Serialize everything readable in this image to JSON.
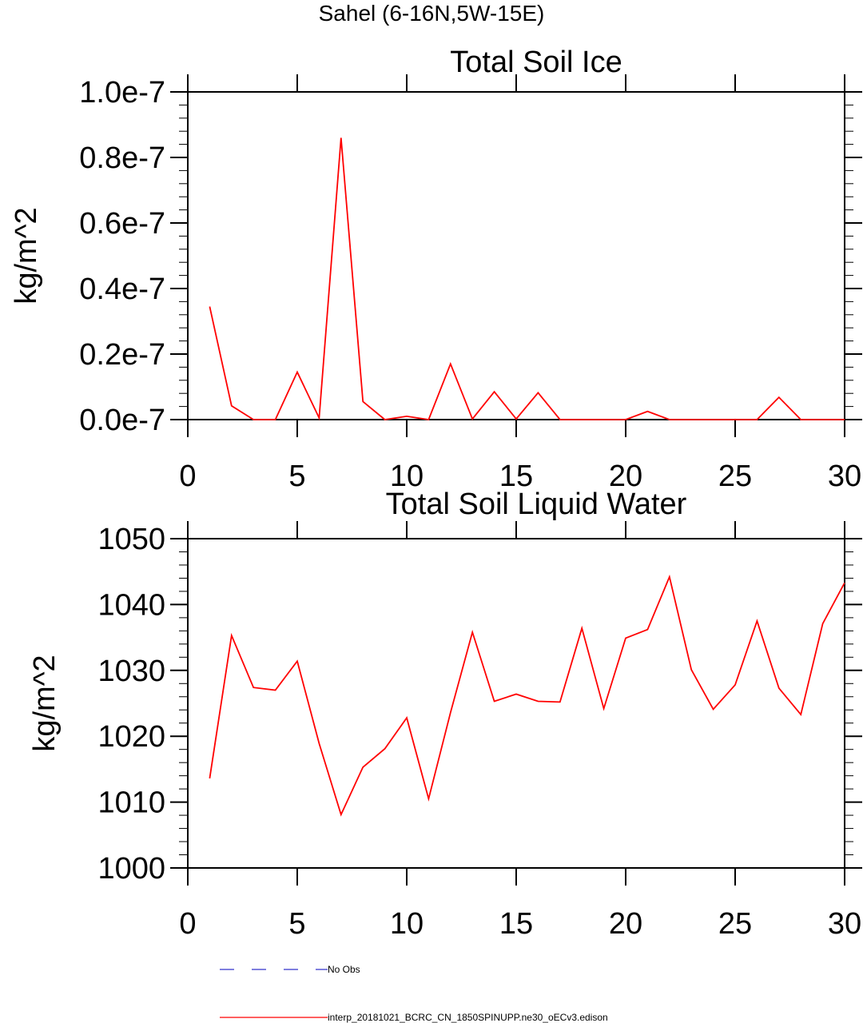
{
  "main_title": "Sahel (6-16N,5W-15E)",
  "legend": [
    {
      "label": "No Obs",
      "color": "#3333cc",
      "style": "dashed"
    },
    {
      "label": "interp_20181021_BCRC_CN_1850SPINUPP.ne30_oECv3.edison",
      "color": "#ff0000",
      "style": "solid"
    }
  ],
  "colors": {
    "series": "#ff0000",
    "obs": "#3333cc",
    "axis": "#000000"
  },
  "chart_data": [
    {
      "type": "line",
      "title": "Total Soil Ice",
      "xlabel": "",
      "ylabel": "kg/m^2",
      "xlim": [
        0,
        30
      ],
      "ylim": [
        0,
        1e-07
      ],
      "x_ticks": [
        0,
        5,
        10,
        15,
        20,
        25,
        30
      ],
      "x_tick_labels": [
        "0",
        "5",
        "10",
        "15",
        "20",
        "25",
        "30"
      ],
      "y_ticks": [
        0,
        2e-08,
        4e-08,
        6e-08,
        8e-08,
        1e-07
      ],
      "y_tick_labels": [
        "0.0e-7",
        "0.2e-7",
        "0.4e-7",
        "0.6e-7",
        "0.8e-7",
        "1.0e-7"
      ],
      "y_minor_per_major": 4,
      "x_minor_step": 1,
      "grid": false,
      "series": [
        {
          "name": "interp_20181021_BCRC_CN_1850SPINUPP.ne30_oECv3.edison",
          "x": [
            1,
            2,
            3,
            4,
            5,
            6,
            7,
            8,
            9,
            10,
            11,
            12,
            13,
            14,
            15,
            16,
            17,
            18,
            19,
            20,
            21,
            22,
            23,
            24,
            25,
            26,
            27,
            28,
            29,
            30
          ],
          "values": [
            3.45e-08,
            4.2e-09,
            0,
            0,
            1.45e-08,
            5e-10,
            8.6e-08,
            5.5e-09,
            0,
            1e-09,
            0,
            1.7e-08,
            2e-10,
            8.5e-09,
            2e-10,
            8.2e-09,
            0,
            0,
            0,
            0,
            2.5e-09,
            0,
            0,
            0,
            0,
            0,
            6.8e-09,
            0,
            0,
            0
          ]
        }
      ]
    },
    {
      "type": "line",
      "title": "Total Soil Liquid Water",
      "xlabel": "",
      "ylabel": "kg/m^2",
      "xlim": [
        0,
        30
      ],
      "ylim": [
        1000,
        1050
      ],
      "x_ticks": [
        0,
        5,
        10,
        15,
        20,
        25,
        30
      ],
      "x_tick_labels": [
        "0",
        "5",
        "10",
        "15",
        "20",
        "25",
        "30"
      ],
      "y_ticks": [
        1000,
        1010,
        1020,
        1030,
        1040,
        1050
      ],
      "y_tick_labels": [
        "1000",
        "1010",
        "1020",
        "1030",
        "1040",
        "1050"
      ],
      "y_minor_per_major": 4,
      "x_minor_step": 1,
      "grid": false,
      "series": [
        {
          "name": "interp_20181021_BCRC_CN_1850SPINUPP.ne30_oECv3.edison",
          "x": [
            1,
            2,
            3,
            4,
            5,
            6,
            7,
            8,
            9,
            10,
            11,
            12,
            13,
            14,
            15,
            16,
            17,
            18,
            19,
            20,
            21,
            22,
            23,
            24,
            25,
            26,
            27,
            28,
            29,
            30
          ],
          "values": [
            1013.6,
            1035.3,
            1027.4,
            1027.0,
            1031.4,
            1018.9,
            1008.1,
            1015.3,
            1018.1,
            1022.8,
            1010.5,
            1023.6,
            1035.8,
            1025.3,
            1026.4,
            1025.3,
            1025.2,
            1036.4,
            1024.2,
            1034.9,
            1036.2,
            1044.2,
            1030.1,
            1024.1,
            1027.8,
            1037.5,
            1027.3,
            1023.3,
            1037.1,
            1043.3
          ]
        }
      ]
    }
  ]
}
